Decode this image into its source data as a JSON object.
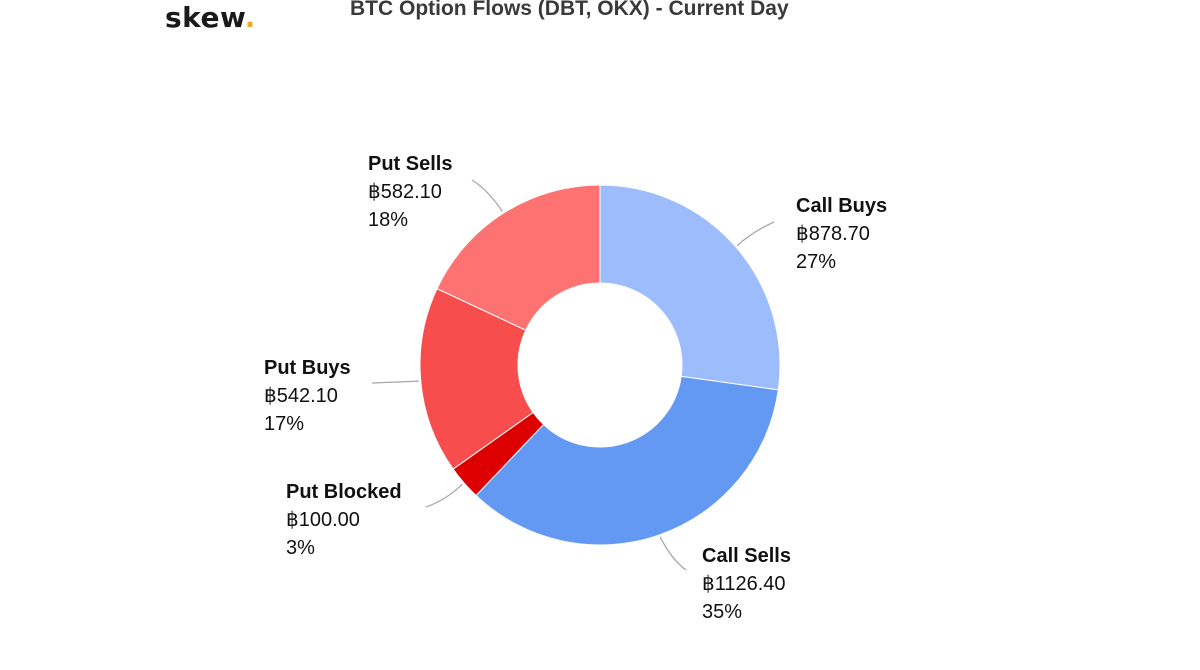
{
  "logo": {
    "text": "skew",
    "dot": "."
  },
  "chart_data": {
    "type": "pie",
    "donut": true,
    "title": "BTC Option Flows (DBT, OKX) - Current Day",
    "slices": [
      {
        "label": "Call Buys",
        "value": 878.7,
        "value_text": "฿878.70",
        "percent_text": "27%",
        "color": "#9dbcfb"
      },
      {
        "label": "Call Sells",
        "value": 1126.4,
        "value_text": "฿1126.40",
        "percent_text": "35%",
        "color": "#6398f3"
      },
      {
        "label": "Put Blocked",
        "value": 100.0,
        "value_text": "฿100.00",
        "percent_text": "3%",
        "color": "#dc0000"
      },
      {
        "label": "Put Buys",
        "value": 542.1,
        "value_text": "฿542.10",
        "percent_text": "17%",
        "color": "#f74d4d"
      },
      {
        "label": "Put Sells",
        "value": 582.1,
        "value_text": "฿582.10",
        "percent_text": "18%",
        "color": "#ff7272"
      }
    ]
  }
}
